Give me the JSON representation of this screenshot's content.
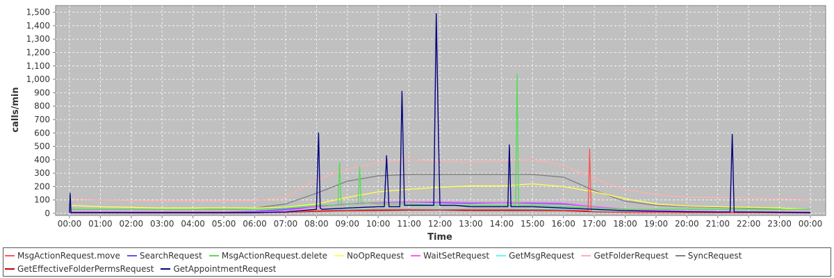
{
  "chart_data": {
    "type": "line",
    "xlabel": "Time",
    "ylabel": "calls/min",
    "ylim": [
      0,
      1550
    ],
    "y_ticks": [
      "0",
      "100",
      "200",
      "300",
      "400",
      "500",
      "600",
      "700",
      "800",
      "900",
      "1,000",
      "1,100",
      "1,200",
      "1,300",
      "1,400",
      "1,500"
    ],
    "x_ticks": [
      "00:00",
      "01:00",
      "02:00",
      "03:00",
      "04:00",
      "05:00",
      "06:00",
      "07:00",
      "08:00",
      "09:00",
      "10:00",
      "11:00",
      "12:00",
      "13:00",
      "14:00",
      "15:00",
      "16:00",
      "17:00",
      "18:00",
      "19:00",
      "20:00",
      "21:00",
      "22:00",
      "23:00",
      "00:00"
    ],
    "x_range_hours": [
      0,
      24
    ],
    "grid": true,
    "legend_position": "bottom",
    "series": [
      {
        "name": "MsgActionRequest.move",
        "color": "#ff5555",
        "x": [
          0,
          1,
          2,
          3,
          4,
          5,
          6,
          7,
          8,
          9,
          10,
          11,
          12,
          13,
          14,
          15,
          16,
          16.8,
          16.85,
          16.9,
          18,
          19,
          20,
          21,
          22,
          23,
          24
        ],
        "y": [
          5,
          4,
          3,
          3,
          3,
          3,
          4,
          8,
          20,
          25,
          30,
          30,
          28,
          30,
          30,
          28,
          25,
          20,
          480,
          15,
          10,
          8,
          6,
          5,
          4,
          4,
          3
        ]
      },
      {
        "name": "SearchRequest",
        "color": "#5555ff",
        "x": [
          0,
          1,
          2,
          3,
          4,
          5,
          6,
          7,
          8,
          9,
          10,
          11,
          12,
          13,
          14,
          15,
          16,
          17,
          18,
          19,
          20,
          21,
          22,
          23,
          24
        ],
        "y": [
          10,
          10,
          10,
          10,
          10,
          10,
          15,
          30,
          50,
          70,
          80,
          85,
          80,
          75,
          80,
          75,
          70,
          50,
          30,
          20,
          15,
          12,
          10,
          10,
          10
        ]
      },
      {
        "name": "MsgActionRequest.delete",
        "color": "#55dd55",
        "x": [
          0,
          1,
          2,
          3,
          4,
          5,
          6,
          7,
          8,
          8.7,
          8.75,
          8.8,
          9,
          9.35,
          9.4,
          9.45,
          10,
          11,
          12,
          13,
          14,
          14.45,
          14.5,
          14.55,
          15,
          16,
          17,
          18,
          19,
          20,
          21,
          22,
          23,
          24
        ],
        "y": [
          30,
          30,
          30,
          30,
          30,
          30,
          30,
          40,
          60,
          60,
          380,
          60,
          70,
          70,
          350,
          80,
          70,
          70,
          60,
          60,
          60,
          60,
          1040,
          60,
          60,
          50,
          40,
          30,
          30,
          30,
          30,
          30,
          30,
          30
        ]
      },
      {
        "name": "NoOpRequest",
        "color": "#ffff55",
        "x": [
          0,
          1,
          2,
          3,
          4,
          5,
          6,
          7,
          8,
          9,
          10,
          11,
          12,
          13,
          14,
          15,
          16,
          17,
          18,
          19,
          20,
          21,
          22,
          23,
          24
        ],
        "y": [
          60,
          50,
          45,
          40,
          40,
          40,
          40,
          45,
          70,
          120,
          160,
          180,
          195,
          205,
          205,
          220,
          200,
          160,
          110,
          70,
          55,
          50,
          45,
          40,
          30
        ]
      },
      {
        "name": "WaitSetRequest",
        "color": "#ff55ff",
        "x": [
          0,
          1,
          2,
          3,
          4,
          5,
          6,
          7,
          8,
          9,
          10,
          11,
          12,
          13,
          14,
          15,
          16,
          17,
          18,
          19,
          20,
          21,
          22,
          23,
          24
        ],
        "y": [
          10,
          10,
          10,
          10,
          10,
          10,
          10,
          20,
          50,
          70,
          80,
          85,
          85,
          80,
          80,
          80,
          75,
          50,
          30,
          20,
          15,
          12,
          10,
          10,
          10
        ]
      },
      {
        "name": "GetMsgRequest",
        "color": "#55ffff",
        "x": [
          0,
          1,
          2,
          3,
          4,
          5,
          6,
          7,
          8,
          9,
          10,
          11,
          12,
          13,
          14,
          15,
          16,
          17,
          18,
          19,
          20,
          21,
          22,
          23,
          24
        ],
        "y": [
          5,
          5,
          5,
          5,
          5,
          5,
          5,
          10,
          20,
          30,
          35,
          35,
          35,
          35,
          35,
          35,
          30,
          20,
          12,
          10,
          8,
          6,
          5,
          5,
          5
        ]
      },
      {
        "name": "GetFolderRequest",
        "color": "#ffafaf",
        "x": [
          0,
          1,
          2,
          3,
          4,
          5,
          6,
          7,
          8,
          9,
          10,
          11,
          12,
          13,
          14,
          15,
          16,
          17,
          18,
          19,
          20,
          21,
          22,
          23,
          24
        ],
        "y": [
          110,
          100,
          95,
          90,
          90,
          90,
          95,
          120,
          250,
          330,
          380,
          400,
          390,
          380,
          390,
          400,
          360,
          260,
          180,
          140,
          120,
          120,
          115,
          110,
          100
        ]
      },
      {
        "name": "SyncRequest",
        "color": "#808080",
        "x": [
          0,
          1,
          2,
          3,
          4,
          5,
          6,
          7,
          8,
          9,
          10,
          11,
          12,
          13,
          14,
          15,
          16,
          17,
          18,
          19,
          20,
          21,
          22,
          23,
          24
        ],
        "y": [
          30,
          30,
          30,
          30,
          30,
          35,
          40,
          70,
          150,
          240,
          280,
          290,
          290,
          290,
          290,
          290,
          270,
          170,
          90,
          60,
          50,
          45,
          40,
          35,
          30
        ]
      },
      {
        "name": "GetEffectiveFolderPermsRequest",
        "color": "#c00000",
        "x": [
          0,
          1,
          2,
          3,
          4,
          5,
          6,
          7,
          8,
          9,
          10,
          11,
          12,
          13,
          14,
          15,
          16,
          17,
          18,
          19,
          20,
          21,
          22,
          23,
          24
        ],
        "y": [
          5,
          5,
          5,
          5,
          5,
          5,
          5,
          8,
          15,
          20,
          22,
          25,
          25,
          22,
          22,
          22,
          20,
          12,
          8,
          6,
          5,
          5,
          5,
          5,
          5
        ]
      },
      {
        "name": "GetAppointmentRequest",
        "color": "#000080",
        "x": [
          0,
          0.02,
          0.05,
          1,
          2,
          3,
          4,
          5,
          6,
          7,
          8,
          8.07,
          8.12,
          8.18,
          9,
          10,
          10.2,
          10.27,
          10.35,
          10.7,
          10.77,
          10.85,
          11,
          11.8,
          11.88,
          11.93,
          12.0,
          12.5,
          13,
          14,
          14.2,
          14.25,
          14.3,
          15,
          16,
          17,
          18,
          19,
          20,
          21,
          21.4,
          21.47,
          21.53,
          22,
          23,
          24
        ],
        "y": [
          5,
          150,
          5,
          5,
          5,
          5,
          5,
          5,
          5,
          10,
          30,
          600,
          40,
          30,
          40,
          50,
          50,
          430,
          50,
          50,
          910,
          60,
          60,
          60,
          1490,
          850,
          60,
          60,
          50,
          50,
          50,
          510,
          50,
          50,
          40,
          30,
          20,
          15,
          12,
          10,
          10,
          590,
          10,
          10,
          8,
          5
        ]
      }
    ]
  }
}
